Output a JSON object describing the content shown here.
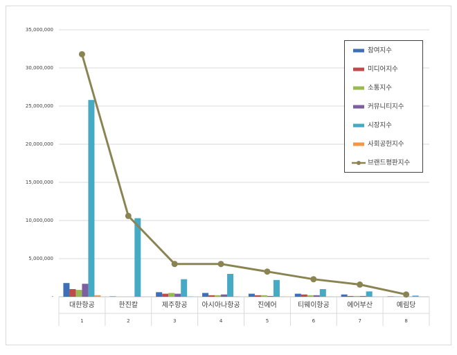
{
  "chart_data": {
    "type": "bar",
    "categories": [
      "대한항공",
      "한진칼",
      "제주항공",
      "아시아나항공",
      "진에어",
      "티웨이항공",
      "에어부산",
      "예림당"
    ],
    "category_numbers": [
      "1",
      "2",
      "3",
      "4",
      "5",
      "6",
      "7",
      "8"
    ],
    "series": [
      {
        "name": "참여지수",
        "color": "#3f6fb6",
        "values": [
          1800000,
          50000,
          600000,
          500000,
          400000,
          400000,
          300000,
          50000
        ]
      },
      {
        "name": "미디어지수",
        "color": "#be4b48",
        "values": [
          1000000,
          0,
          400000,
          200000,
          200000,
          300000,
          100000,
          20000
        ]
      },
      {
        "name": "소통지수",
        "color": "#98b954",
        "values": [
          900000,
          0,
          500000,
          200000,
          200000,
          200000,
          100000,
          20000
        ]
      },
      {
        "name": "커뮤니티지수",
        "color": "#7d5fa0",
        "values": [
          1700000,
          0,
          400000,
          300000,
          100000,
          200000,
          100000,
          20000
        ]
      },
      {
        "name": "시장지수",
        "color": "#46aac5",
        "values": [
          25800000,
          10300000,
          2300000,
          3000000,
          2200000,
          1000000,
          700000,
          150000
        ]
      },
      {
        "name": "사회공헌지수",
        "color": "#f59646",
        "values": [
          200000,
          0,
          50000,
          50000,
          30000,
          30000,
          20000,
          10000
        ]
      },
      {
        "name": "브랜드평판지수",
        "color": "#8a8453",
        "type": "line",
        "values": [
          31800000,
          10600000,
          4300000,
          4300000,
          3300000,
          2300000,
          1600000,
          300000
        ]
      }
    ],
    "ylim": [
      0,
      35000000
    ],
    "yticks": [
      {
        "value": 0,
        "label": "-"
      },
      {
        "value": 5000000,
        "label": "5,000,000"
      },
      {
        "value": 10000000,
        "label": "10,000,000"
      },
      {
        "value": 15000000,
        "label": "15,000,000"
      },
      {
        "value": 20000000,
        "label": "20,000,000"
      },
      {
        "value": 25000000,
        "label": "25,000,000"
      },
      {
        "value": 30000000,
        "label": "30,000,000"
      },
      {
        "value": 35000000,
        "label": "35,000,000"
      }
    ],
    "grid": true
  }
}
